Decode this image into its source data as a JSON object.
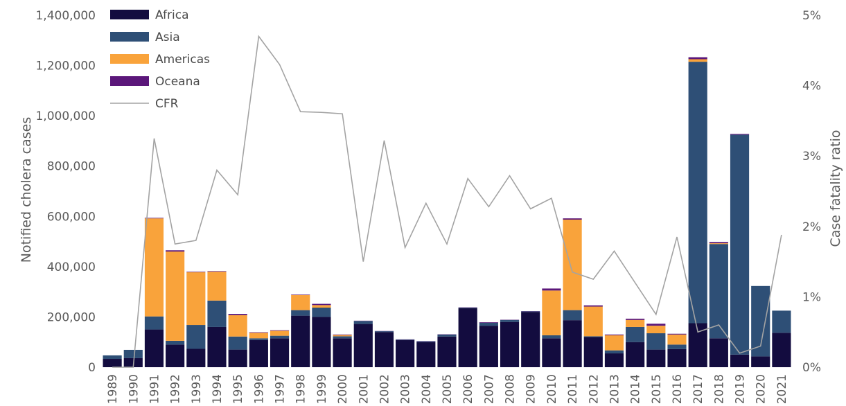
{
  "chart_data": {
    "type": "bar",
    "stacked": true,
    "categories": [
      "1989",
      "1990",
      "1991",
      "1992",
      "1993",
      "1994",
      "1995",
      "1996",
      "1997",
      "1998",
      "1999",
      "2000",
      "2001",
      "2002",
      "2003",
      "2004",
      "2005",
      "2006",
      "2007",
      "2008",
      "2009",
      "2010",
      "2011",
      "2012",
      "2013",
      "2014",
      "2015",
      "2016",
      "2017",
      "2018",
      "2019",
      "2020",
      "2021"
    ],
    "series": [
      {
        "name": "Africa",
        "color": "#130c3f",
        "values": [
          33000,
          36000,
          150000,
          90000,
          73000,
          160000,
          70000,
          108000,
          115000,
          205000,
          200000,
          115000,
          172000,
          140000,
          108000,
          100000,
          122000,
          235000,
          165000,
          180000,
          220000,
          115000,
          187000,
          120000,
          55000,
          100000,
          70000,
          72000,
          175000,
          115000,
          50000,
          43000,
          137000
        ]
      },
      {
        "name": "Asia",
        "color": "#2e4f76",
        "values": [
          14000,
          33000,
          52000,
          15000,
          95000,
          105000,
          52000,
          7000,
          10000,
          22000,
          37000,
          8000,
          12000,
          3000,
          2000,
          3000,
          8000,
          2000,
          12000,
          8000,
          2000,
          12000,
          40000,
          3000,
          12000,
          60000,
          65000,
          18000,
          1040000,
          375000,
          875000,
          280000,
          88000
        ]
      },
      {
        "name": "Americas",
        "color": "#f9a33b",
        "values": [
          0,
          0,
          390000,
          355000,
          210000,
          115000,
          85000,
          22000,
          20000,
          60000,
          10000,
          5000,
          0,
          0,
          0,
          0,
          0,
          0,
          0,
          0,
          0,
          178000,
          360000,
          118000,
          60000,
          28000,
          30000,
          40000,
          10000,
          3000,
          0,
          0,
          0
        ]
      },
      {
        "name": "Oceana",
        "color": "#5b177a",
        "values": [
          0,
          0,
          2000,
          5000,
          2000,
          2000,
          5000,
          2000,
          2000,
          2000,
          5000,
          2000,
          1000,
          1000,
          1000,
          1000,
          1000,
          1000,
          2000,
          1000,
          1000,
          8000,
          5000,
          5000,
          3000,
          5000,
          8000,
          3000,
          8000,
          5000,
          3000,
          0,
          0
        ]
      }
    ],
    "line": {
      "name": "CFR",
      "color": "#a3a3a3",
      "values": [
        0.0,
        0.0,
        3.25,
        1.75,
        1.8,
        2.8,
        2.45,
        4.7,
        4.3,
        3.63,
        3.62,
        3.6,
        1.5,
        3.22,
        1.7,
        2.33,
        1.75,
        2.68,
        2.28,
        2.72,
        2.25,
        2.4,
        1.35,
        1.25,
        1.65,
        1.2,
        0.75,
        1.85,
        0.5,
        0.6,
        0.2,
        0.3,
        1.88
      ]
    },
    "ylabel": "Notified cholera cases",
    "y2label": "Case fatality ratio",
    "ylim": [
      0,
      1400000
    ],
    "y2lim": [
      0,
      5
    ],
    "y_ticks": [
      "0",
      "200,000",
      "400,000",
      "600,000",
      "800,000",
      "1,000,000",
      "1,200,000",
      "1,400,000"
    ],
    "y2_ticks": [
      "0%",
      "1%",
      "2%",
      "3%",
      "4%",
      "5%"
    ],
    "legend_position": "top-left",
    "grid": false
  }
}
